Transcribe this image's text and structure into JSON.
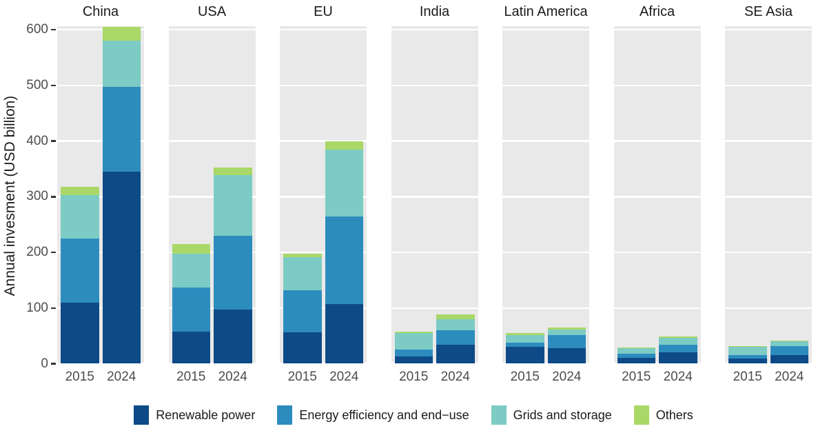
{
  "chart_data": {
    "type": "bar",
    "stacked": true,
    "faceted": true,
    "title": "",
    "ylabel": "Annual invesment (USD billion)",
    "xlabel": "",
    "ylim": [
      0,
      607
    ],
    "yticks": [
      0,
      100,
      200,
      300,
      400,
      500,
      600
    ],
    "grid": "major-horizontal-white-on-gray",
    "legend_position": "bottom",
    "x_categories": [
      "2015",
      "2024"
    ],
    "series_meta": [
      {
        "name": "Renewable power",
        "color": "#0d4a87"
      },
      {
        "name": "Energy efficiency and end−use",
        "color": "#2d8cbe"
      },
      {
        "name": "Grids and storage",
        "color": "#7ccbc4"
      },
      {
        "name": "Others",
        "color": "#a9d868"
      }
    ],
    "facets": [
      {
        "name": "China",
        "values": [
          [
            110,
            115,
            78,
            15
          ],
          [
            345,
            152,
            83,
            25
          ]
        ]
      },
      {
        "name": "USA",
        "values": [
          [
            57,
            80,
            61,
            17
          ],
          [
            97,
            133,
            109,
            13
          ]
        ]
      },
      {
        "name": "EU",
        "values": [
          [
            56,
            76,
            60,
            5
          ],
          [
            107,
            158,
            120,
            15
          ]
        ]
      },
      {
        "name": "India",
        "values": [
          [
            13,
            13,
            29,
            3
          ],
          [
            34,
            26,
            20,
            8
          ]
        ]
      },
      {
        "name": "Latin America",
        "values": [
          [
            30,
            8,
            14,
            3
          ],
          [
            28,
            23,
            10,
            4
          ]
        ]
      },
      {
        "name": "Africa",
        "values": [
          [
            11,
            7,
            10,
            1
          ],
          [
            20,
            14,
            12,
            3
          ]
        ]
      },
      {
        "name": "SE Asia",
        "values": [
          [
            9,
            7,
            14,
            2
          ],
          [
            16,
            15,
            9,
            2
          ]
        ]
      }
    ],
    "colors": {
      "panel_background": "#e9e9e9",
      "gridline": "#ffffff",
      "axis_text": "#4d4d4d",
      "title_text": "#1a1a1a",
      "tick_mark": "#333333"
    }
  }
}
